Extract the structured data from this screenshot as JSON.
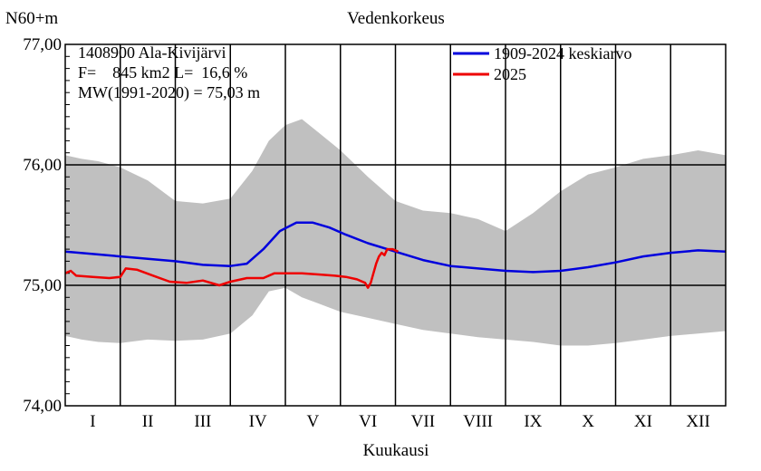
{
  "chart_data": {
    "type": "line",
    "title": "Vedenkorkeus",
    "ylabel": "N60+m",
    "xlabel": "Kuukausi",
    "ylim": [
      74.0,
      77.0
    ],
    "xlim": [
      0,
      12
    ],
    "y_ticks": [
      {
        "value": 74.0,
        "label": "74,00"
      },
      {
        "value": 75.0,
        "label": "75,00"
      },
      {
        "value": 76.0,
        "label": "76,00"
      },
      {
        "value": 77.0,
        "label": "77,00"
      }
    ],
    "months": [
      "I",
      "II",
      "III",
      "IV",
      "V",
      "VI",
      "VII",
      "VIII",
      "IX",
      "X",
      "XI",
      "XII"
    ],
    "grid": true,
    "legend_position": "top-right",
    "info_lines": [
      "1408900 Ala-Kivijärvi",
      "F=    845 km2 L=  16,6 %",
      "MW(1991-2020) = 75,03 m"
    ],
    "range_band": {
      "color": "#c0c0c0",
      "x": [
        0.0,
        0.3,
        0.6,
        1.0,
        1.5,
        2.0,
        2.5,
        3.0,
        3.4,
        3.7,
        4.0,
        4.3,
        4.6,
        5.0,
        5.5,
        6.0,
        6.5,
        7.0,
        7.5,
        8.0,
        8.5,
        9.0,
        9.5,
        10.0,
        10.5,
        11.0,
        11.5,
        12.0
      ],
      "upper": [
        76.08,
        76.05,
        76.03,
        75.98,
        75.87,
        75.7,
        75.68,
        75.72,
        75.95,
        76.2,
        76.33,
        76.38,
        76.27,
        76.12,
        75.9,
        75.7,
        75.62,
        75.6,
        75.55,
        75.45,
        75.6,
        75.78,
        75.92,
        75.98,
        76.05,
        76.08,
        76.12,
        76.08
      ],
      "lower": [
        74.58,
        74.55,
        74.53,
        74.52,
        74.55,
        74.54,
        74.55,
        74.6,
        74.75,
        74.95,
        74.98,
        74.9,
        74.85,
        74.78,
        74.73,
        74.68,
        74.63,
        74.6,
        74.57,
        74.55,
        74.53,
        74.5,
        74.5,
        74.52,
        74.55,
        74.58,
        74.6,
        74.62
      ]
    },
    "series": [
      {
        "name": "1909-2024 keskiarvo",
        "color": "#0000dd",
        "x": [
          0.0,
          0.5,
          1.0,
          1.5,
          2.0,
          2.5,
          3.0,
          3.3,
          3.6,
          3.9,
          4.2,
          4.5,
          4.8,
          5.1,
          5.5,
          6.0,
          6.5,
          7.0,
          7.5,
          8.0,
          8.5,
          9.0,
          9.5,
          10.0,
          10.5,
          11.0,
          11.5,
          12.0
        ],
        "values": [
          75.28,
          75.26,
          75.24,
          75.22,
          75.2,
          75.17,
          75.16,
          75.18,
          75.3,
          75.45,
          75.52,
          75.52,
          75.48,
          75.42,
          75.35,
          75.28,
          75.21,
          75.16,
          75.14,
          75.12,
          75.11,
          75.12,
          75.15,
          75.19,
          75.24,
          75.27,
          75.29,
          75.28
        ]
      },
      {
        "name": "2025",
        "color": "#ee0000",
        "x": [
          0.0,
          0.1,
          0.2,
          0.5,
          0.8,
          1.0,
          1.1,
          1.3,
          1.6,
          1.9,
          2.2,
          2.5,
          2.8,
          3.0,
          3.3,
          3.6,
          3.8,
          4.0,
          4.3,
          4.6,
          4.9,
          5.1,
          5.3,
          5.45,
          5.5,
          5.55,
          5.6,
          5.65,
          5.7,
          5.75,
          5.8,
          5.85,
          5.95,
          6.05
        ],
        "values": [
          75.1,
          75.12,
          75.08,
          75.07,
          75.06,
          75.07,
          75.14,
          75.13,
          75.08,
          75.03,
          75.02,
          75.04,
          75.0,
          75.03,
          75.06,
          75.06,
          75.1,
          75.1,
          75.1,
          75.09,
          75.08,
          75.07,
          75.05,
          75.02,
          74.98,
          75.02,
          75.1,
          75.18,
          75.24,
          75.27,
          75.25,
          75.3,
          75.3,
          75.28
        ]
      }
    ]
  }
}
